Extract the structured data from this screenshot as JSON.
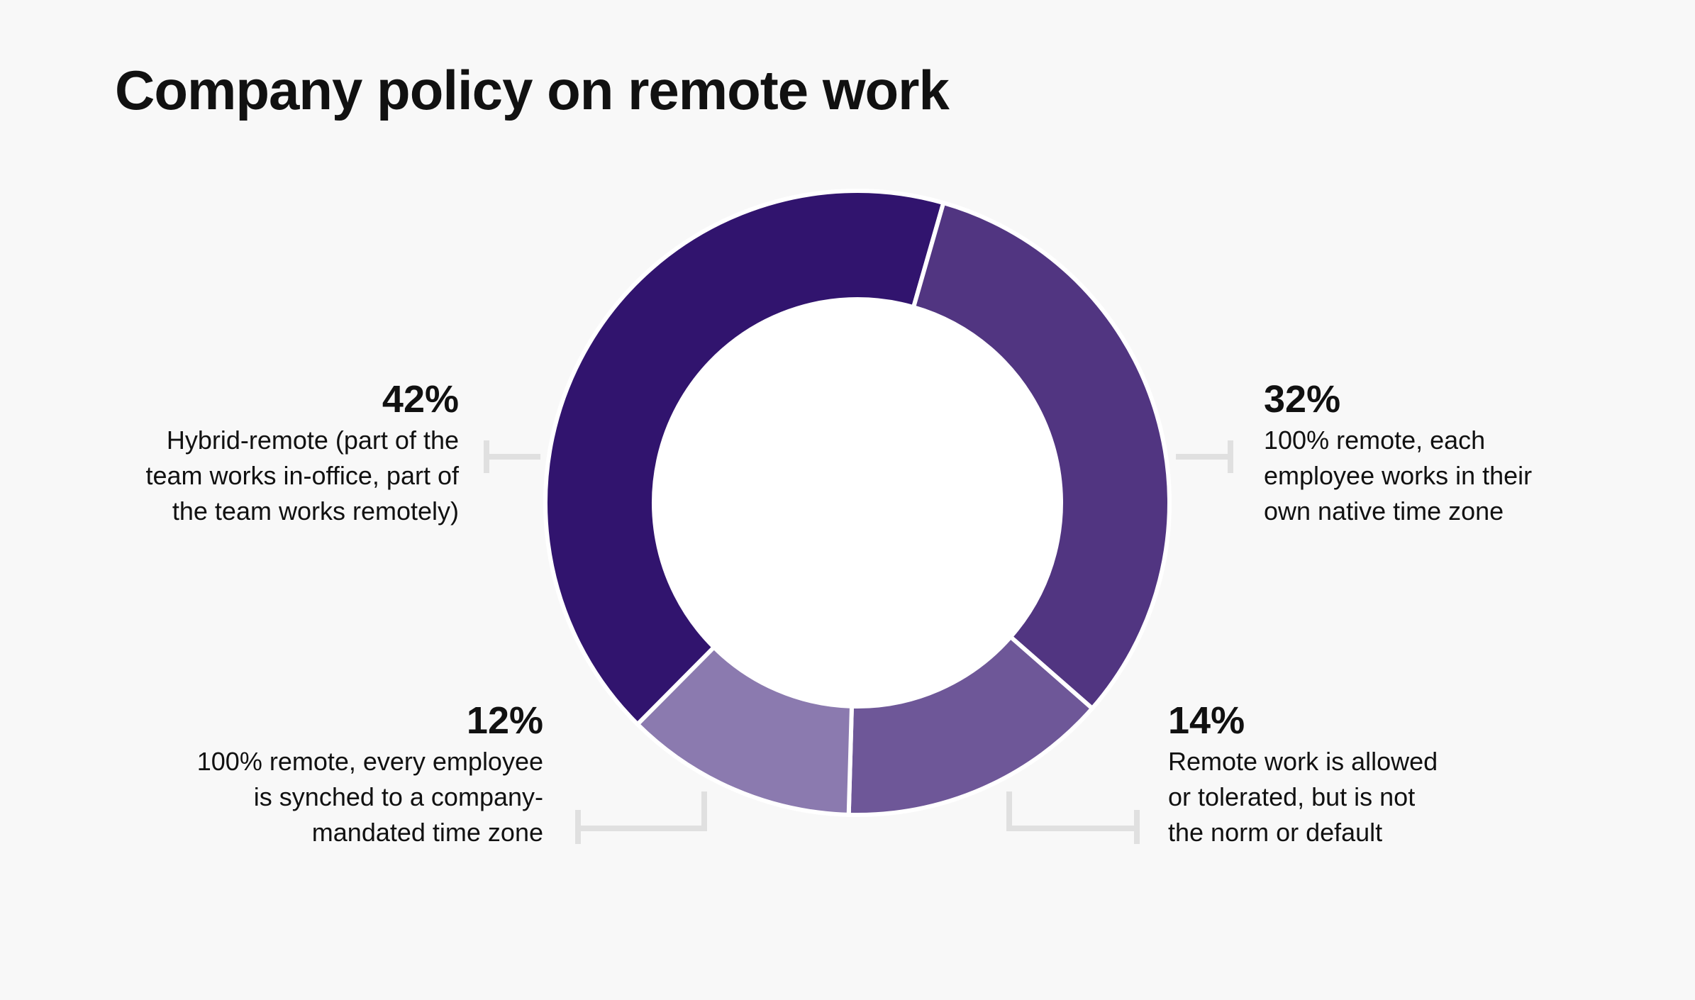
{
  "title": "Company policy on remote work",
  "chart_data": {
    "type": "pie",
    "subtype": "donut",
    "title": "Company policy on remote work",
    "slices": [
      {
        "value": 42,
        "label": "42%",
        "description": "Hybrid-remote (part of the team works in-office, part of the team works remotely)",
        "color": "#31146e"
      },
      {
        "value": 32,
        "label": "32%",
        "description": "100% remote, each employee works in their own native time zone",
        "color": "#513581"
      },
      {
        "value": 14,
        "label": "14%",
        "description": "Remote work is allowed or tolerated, but is not the norm or default",
        "color": "#6e5798"
      },
      {
        "value": 12,
        "label": "12%",
        "description": "100% remote, every employee is synched to a company-mandated time zone",
        "color": "#8b7aaf"
      }
    ]
  },
  "labels": [
    {
      "pct": "42%",
      "lines": [
        "Hybrid-remote (part of the",
        "team works in-office, part of",
        "the team works remotely)"
      ]
    },
    {
      "pct": "32%",
      "lines": [
        "100% remote, each",
        "employee works in their",
        "own native time zone"
      ]
    },
    {
      "pct": "14%",
      "lines": [
        "Remote work is allowed",
        "or tolerated, but is not",
        "the norm or default"
      ]
    },
    {
      "pct": "12%",
      "lines": [
        "100% remote, every employee",
        "is synched to a company-",
        "mandated time zone"
      ]
    }
  ]
}
